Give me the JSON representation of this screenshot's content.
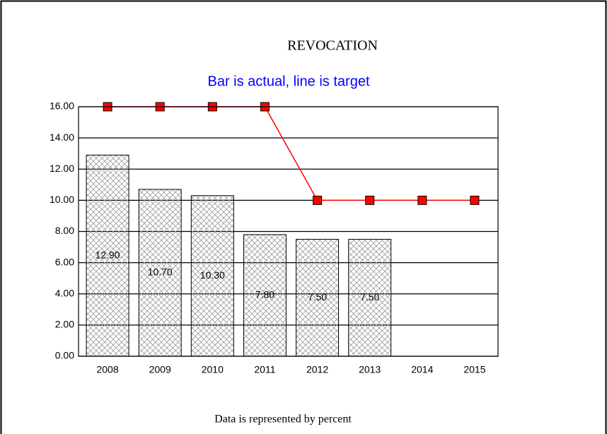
{
  "chart_data": {
    "type": "bar",
    "title": "REVOCATION",
    "subtitle": "Bar is actual, line is target",
    "footnote": "Data is represented by percent",
    "categories": [
      "2008",
      "2009",
      "2010",
      "2011",
      "2012",
      "2013",
      "2014",
      "2015"
    ],
    "series": [
      {
        "type": "bar",
        "color": "#9a9a9a",
        "values": [
          12.9,
          10.7,
          10.3,
          7.8,
          7.5,
          7.5,
          null,
          null
        ],
        "value_labels": [
          "12.90",
          "10.70",
          "10.30",
          "7.80",
          "7.50",
          "7.50",
          null,
          null
        ]
      },
      {
        "type": "line",
        "color": "#ff0000",
        "values": [
          16,
          16,
          16,
          16,
          10,
          10,
          10,
          10
        ]
      }
    ],
    "ylim": [
      0,
      16
    ],
    "yticks": [
      {
        "value": 0,
        "label": "0.00"
      },
      {
        "value": 2,
        "label": "2.00"
      },
      {
        "value": 4,
        "label": "4.00"
      },
      {
        "value": 6,
        "label": "6.00"
      },
      {
        "value": 8,
        "label": "8.00"
      },
      {
        "value": 10,
        "label": "10.00"
      },
      {
        "value": 12,
        "label": "12.00"
      },
      {
        "value": 14,
        "label": "14.00"
      },
      {
        "value": 16,
        "label": "16.00"
      }
    ],
    "grid": true
  }
}
